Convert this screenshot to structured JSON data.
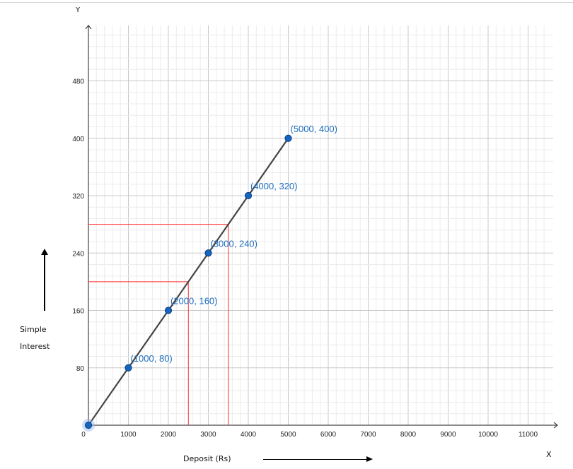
{
  "chart_data": {
    "type": "line",
    "xlabel": "Deposit (Rs)",
    "ylabel_lines": [
      "Simple",
      "Interest"
    ],
    "x_axis_letter": "X",
    "y_axis_letter": "Y",
    "origin_label": "0",
    "xlim": [
      0,
      11600
    ],
    "ylim": [
      0,
      560
    ],
    "x_ticks": [
      1000,
      2000,
      3000,
      4000,
      5000,
      6000,
      7000,
      8000,
      9000,
      10000,
      11000
    ],
    "y_ticks": [
      80,
      160,
      240,
      320,
      400,
      480
    ],
    "grid": true,
    "series": [
      {
        "x": [
          0,
          1000,
          2000,
          3000,
          4000,
          5000
        ],
        "y": [
          0,
          80,
          160,
          240,
          320,
          400
        ],
        "point_labels": [
          "",
          "(1000, 80)",
          "(2000, 160)",
          "(3000, 240)",
          "(4000, 320)",
          "(5000, 400)"
        ]
      }
    ],
    "guides": [
      {
        "x": 2500,
        "y": 200
      },
      {
        "x": 3500,
        "y": 280
      }
    ],
    "colors": {
      "line": "#444444",
      "point": "#1565c0",
      "point_label": "#1f6fbf",
      "guide": "#ff2b2b",
      "grid_major": "#c8c8c8",
      "grid_minor": "#ececec",
      "axis": "#444444"
    }
  }
}
